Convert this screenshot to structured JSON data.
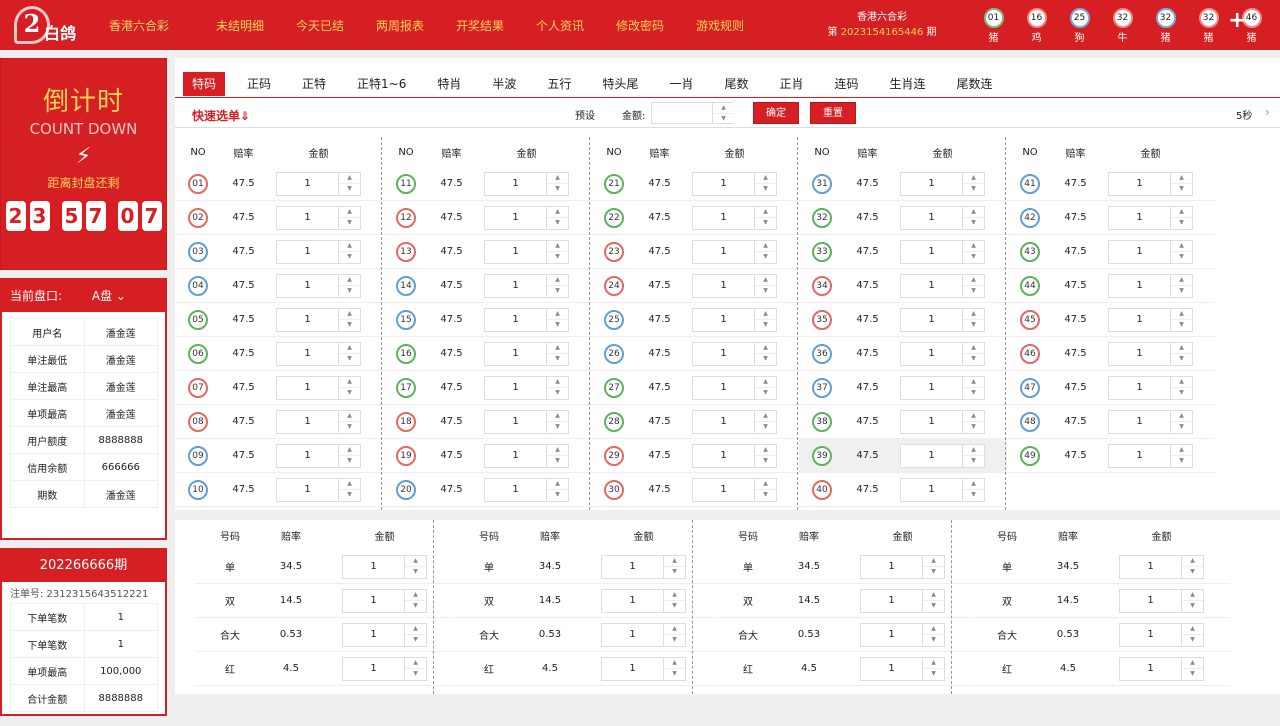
{
  "header": {
    "logo_mark": "2",
    "logo_text": "白鸽",
    "lottery_name": "香港六合彩",
    "nav": [
      "未结明细",
      "今天已结",
      "两周报表",
      "开奖结果",
      "个人资讯",
      "修改密码",
      "游戏规则"
    ],
    "draw_title": "香港六合彩",
    "draw_prefix": "第",
    "draw_number": "2023154165446",
    "draw_suffix": "期",
    "balls": [
      {
        "num": "01",
        "zodiac": "猪",
        "color": "green"
      },
      {
        "num": "16",
        "zodiac": "鸡",
        "color": "red"
      },
      {
        "num": "25",
        "zodiac": "狗",
        "color": "blue"
      },
      {
        "num": "32",
        "zodiac": "牛",
        "color": "red"
      },
      {
        "num": "32",
        "zodiac": "猪",
        "color": "blue"
      },
      {
        "num": "32",
        "zodiac": "猪",
        "color": "red"
      },
      {
        "num": "46",
        "zodiac": "猪",
        "color": "red"
      }
    ],
    "plus_icon": "+"
  },
  "countdown": {
    "title": "倒计时",
    "subtitle": "COUNT DOWN",
    "bolt_icon": "⚡",
    "label": "距离封盘还剩",
    "digits": [
      "2",
      "3",
      "5",
      "7",
      "0",
      "7"
    ]
  },
  "account": {
    "title": "当前盘口:",
    "plate": "A盘",
    "rows": [
      [
        "用户名",
        "潘金莲"
      ],
      [
        "单注最低",
        "潘金莲"
      ],
      [
        "单注最高",
        "潘金莲"
      ],
      [
        "单项最高",
        "潘金莲"
      ],
      [
        "用户额度",
        "8888888"
      ],
      [
        "信用余额",
        "666666"
      ],
      [
        "期数",
        "潘金莲"
      ]
    ]
  },
  "order": {
    "title": "202266666期",
    "serial": "注单号: 2312315643512221",
    "rows": [
      [
        "下单笔数",
        "1"
      ],
      [
        "下单笔数",
        "1"
      ],
      [
        "单项最高",
        "100,000"
      ],
      [
        "合计金额",
        "8888888"
      ]
    ]
  },
  "tabs": [
    "特码",
    "正码",
    "正特",
    "正特1~6",
    "特肖",
    "半波",
    "五行",
    "特头尾",
    "一肖",
    "尾数",
    "正肖",
    "连码",
    "生肖连",
    "尾数连"
  ],
  "quick": {
    "label": "快速选单⇓",
    "preset": "预设",
    "amount_label": "金额:",
    "confirm": "确定",
    "reset": "重置",
    "seconds": "5秒",
    "chevron": "›"
  },
  "grid": {
    "headers": {
      "no": "NO",
      "rate": "赔率",
      "amount": "金额"
    },
    "rate": "47.5",
    "amount": "1",
    "numbers": [
      "01",
      "02",
      "03",
      "04",
      "05",
      "06",
      "07",
      "08",
      "09",
      "10",
      "11",
      "12",
      "13",
      "14",
      "15",
      "16",
      "17",
      "18",
      "19",
      "20",
      "21",
      "22",
      "23",
      "24",
      "25",
      "26",
      "27",
      "28",
      "29",
      "30",
      "31",
      "32",
      "33",
      "34",
      "35",
      "36",
      "37",
      "38",
      "39",
      "40",
      "41",
      "42",
      "43",
      "44",
      "45",
      "46",
      "47",
      "48",
      "49"
    ],
    "colors": [
      "red",
      "red",
      "blue",
      "blue",
      "green",
      "green",
      "red",
      "red",
      "blue",
      "blue",
      "green",
      "red",
      "red",
      "blue",
      "blue",
      "green",
      "green",
      "red",
      "red",
      "blue",
      "green",
      "green",
      "red",
      "red",
      "blue",
      "blue",
      "green",
      "green",
      "red",
      "red",
      "blue",
      "green",
      "green",
      "red",
      "red",
      "blue",
      "blue",
      "green",
      "green",
      "red",
      "blue",
      "blue",
      "green",
      "green",
      "red",
      "red",
      "blue",
      "blue",
      "green"
    ]
  },
  "bottom": {
    "headers": {
      "no": "号码",
      "rate": "赔率",
      "amount": "金额"
    },
    "rows": [
      {
        "label": "单",
        "rate": "34.5",
        "amount": "1"
      },
      {
        "label": "双",
        "rate": "14.5",
        "amount": "1"
      },
      {
        "label": "合大",
        "rate": "0.53",
        "amount": "1"
      },
      {
        "label": "红",
        "rate": "4.5",
        "amount": "1"
      }
    ]
  }
}
